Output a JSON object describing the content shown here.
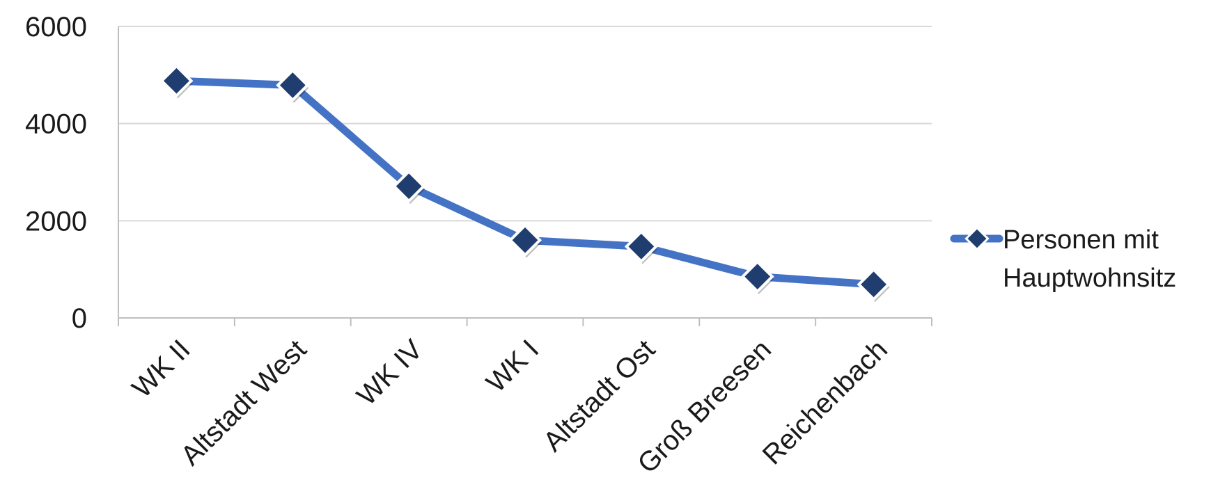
{
  "chart_data": {
    "type": "line",
    "categories": [
      "WK II",
      "Altstadt West",
      "WK IV",
      "WK I",
      "Altstadt Ost",
      "Groß Breesen",
      "Reichenbach"
    ],
    "series": [
      {
        "name": "Personen mit Hauptwohnsitz",
        "values": [
          4880,
          4790,
          2710,
          1600,
          1470,
          850,
          690
        ],
        "color": "#4472C4",
        "marker_color": "#1F3D6E"
      }
    ],
    "yticks": [
      0,
      2000,
      4000,
      6000
    ],
    "ylim": [
      0,
      6000
    ],
    "grid": true,
    "legend": {
      "position": "right",
      "lines": [
        "Personen mit",
        "Hauptwohnsitz"
      ]
    }
  }
}
